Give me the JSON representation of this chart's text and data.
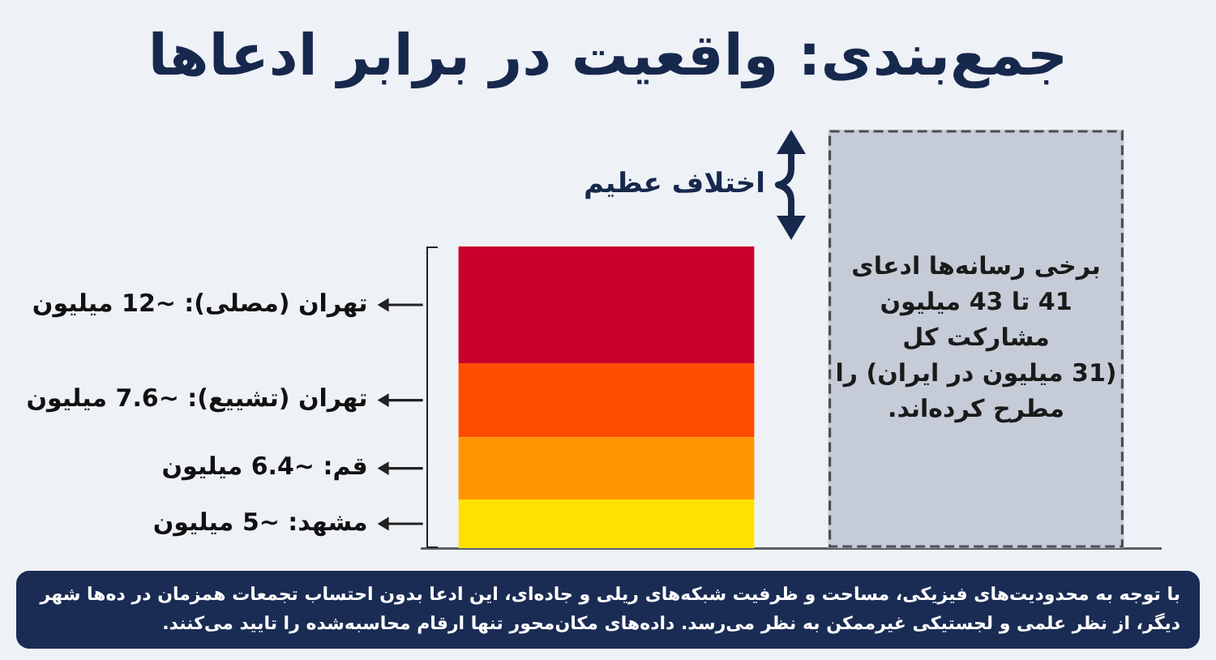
{
  "chart_data": {
    "type": "bar",
    "title": "جمع‌بندی: واقعیت در برابر ادعاها",
    "categories": [
      null,
      null
    ],
    "stacked": true,
    "series": [
      {
        "name": "مشهد:",
        "color": "#ffe100",
        "values": [
          5,
          null
        ],
        "value_labels": [
          "~5 میلیون",
          null
        ]
      },
      {
        "name": "قم:",
        "color": "#ff9500",
        "values": [
          6.4,
          null
        ],
        "value_labels": [
          "~6.4 میلیون",
          null
        ]
      },
      {
        "name": "تهران (تشییع):",
        "color": "#ff4d00",
        "values": [
          7.6,
          null
        ],
        "value_labels": [
          "~7.6 میلیون",
          null
        ]
      },
      {
        "name": "تهران (مصلی):",
        "color": "#c8002b",
        "values": [
          12,
          null
        ],
        "value_labels": [
          "~12 میلیون",
          null
        ]
      },
      {
        "color": "#c5ccd7",
        "line_style": "dashed",
        "values": [
          null,
          43
        ],
        "value_labels": [
          null,
          "برخی رسانه‌ها ادعای\n41 تا 43 میلیون\nمشارکت کل\n(31 میلیون در ایران) را\nمطرح کرده‌اند."
        ]
      }
    ],
    "ylim": [
      0,
      43
    ],
    "tick_labels": false,
    "annotations": [
      "اختلاف عظیم",
      "با توجه به محدودیت‌های فیزیکی، مساحت و ظرفیت شبکه‌های ریلی و جاده‌ای، این ادعا بدون احتساب تجمعات همزمان در ده‌ها شهر دیگر، از نظر علمی و لجستیکی غیرممکن به نظر می‌رسد. داده‌های مکان‌محور تنها ارقام محاسبه‌شده را تایید می‌کنند."
    ]
  }
}
